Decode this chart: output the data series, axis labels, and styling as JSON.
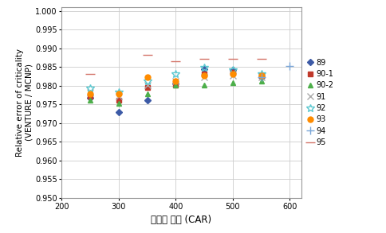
{
  "title": "",
  "xlabel": "제어봉 위치 (CAR)",
  "ylabel": "Relative error of criticality\n(VENTURE / MCNP)",
  "xlim": [
    200,
    620
  ],
  "ylim": [
    0.95,
    1.001
  ],
  "yticks": [
    0.95,
    0.955,
    0.96,
    0.965,
    0.97,
    0.975,
    0.98,
    0.985,
    0.99,
    0.995,
    1.0
  ],
  "xticks": [
    200,
    300,
    400,
    500,
    600
  ],
  "series": [
    {
      "label": "89",
      "x": [
        250,
        300,
        350,
        400,
        450,
        500,
        550
      ],
      "y": [
        0.9768,
        0.973,
        0.9762,
        0.9805,
        0.9845,
        0.9842,
        0.9822
      ],
      "color": "#3C5AA6",
      "marker": "D",
      "markersize": 4,
      "filled": true
    },
    {
      "label": "90-1",
      "x": [
        250,
        300,
        350,
        400,
        450,
        500,
        550
      ],
      "y": [
        0.9772,
        0.9762,
        0.9795,
        0.9802,
        0.9832,
        0.9835,
        0.9828
      ],
      "color": "#C0392B",
      "marker": "s",
      "markersize": 5,
      "filled": true
    },
    {
      "label": "90-2",
      "x": [
        250,
        300,
        350,
        400,
        450,
        500,
        550
      ],
      "y": [
        0.9762,
        0.9752,
        0.9778,
        0.9802,
        0.9802,
        0.9808,
        0.9812
      ],
      "color": "#4DAF4A",
      "marker": "^",
      "markersize": 5,
      "filled": true
    },
    {
      "label": "91",
      "x": [
        250,
        300,
        350,
        400,
        450,
        500,
        550
      ],
      "y": [
        0.9782,
        0.9772,
        0.9802,
        0.9812,
        0.9822,
        0.9828,
        0.9822
      ],
      "color": "#AAAAAA",
      "marker": "x",
      "markersize": 6,
      "filled": false
    },
    {
      "label": "92",
      "x": [
        250,
        300,
        350,
        400,
        450,
        500,
        550
      ],
      "y": [
        0.9792,
        0.9782,
        0.9812,
        0.9832,
        0.9848,
        0.9842,
        0.9832
      ],
      "color": "#5BC8D0",
      "marker": "*",
      "markersize": 7,
      "filled": false
    },
    {
      "label": "93",
      "x": [
        250,
        300,
        350,
        400,
        450,
        500,
        550
      ],
      "y": [
        0.9778,
        0.9778,
        0.9822,
        0.9812,
        0.9828,
        0.9832,
        0.9828
      ],
      "color": "#FF8C00",
      "marker": "o",
      "markersize": 5,
      "filled": true
    },
    {
      "label": "94",
      "x": [
        550,
        600
      ],
      "y": [
        0.9822,
        0.9852
      ],
      "color": "#7BA7D8",
      "marker": "+",
      "markersize": 7,
      "filled": false
    },
    {
      "label": "95",
      "x": [
        250,
        350,
        400,
        450,
        500,
        550
      ],
      "y": [
        0.9832,
        0.9882,
        0.9865,
        0.9872,
        0.9872,
        0.9872
      ],
      "color": "#D4756A",
      "marker": "_",
      "markersize": 9,
      "filled": false
    }
  ],
  "background_color": "#FFFFFF",
  "grid_color": "#CCCCCC",
  "spine_color": "#999999"
}
